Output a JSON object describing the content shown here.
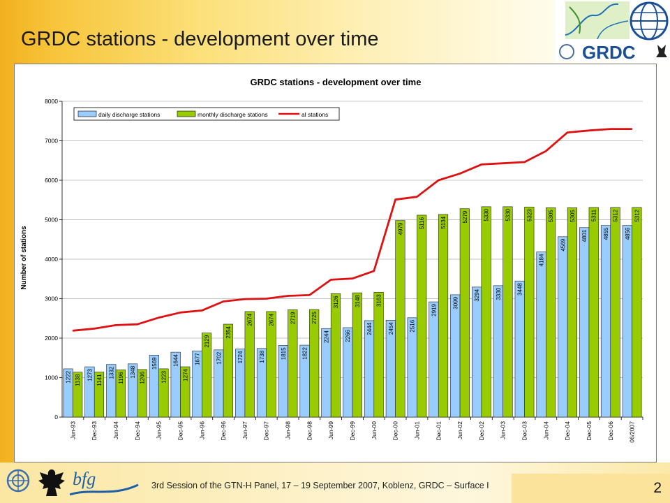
{
  "slide": {
    "title": "GRDC stations - development over time",
    "footer": "3rd Session of the GTN-H Panel, 17 – 19 September 2007, Koblenz, GRDC – Surface I",
    "page_number": "2",
    "logo_text": "GRDC",
    "bfg_text": "bfg"
  },
  "colors": {
    "daily": "#99ccff",
    "monthly": "#99cc00",
    "all": "#dd1111"
  },
  "chart_data": {
    "type": "bar",
    "title": "GRDC stations - development over time",
    "ylabel": "Number of stations",
    "xlabel": "",
    "ylim": [
      0,
      8000
    ],
    "yticks": [
      "0",
      "1000",
      "2000",
      "3000",
      "4000",
      "5000",
      "6000",
      "7000",
      "8000"
    ],
    "grid": true,
    "legend_position": "top-left",
    "categories": [
      "Jun-93",
      "Dec-93",
      "Jun-94",
      "Dec-94",
      "Jun-95",
      "Dec-95",
      "Jun-96",
      "Dec-96",
      "Jun-97",
      "Dec-97",
      "Jun-98",
      "Dec-98",
      "Jun-99",
      "Dec-99",
      "Jun-00",
      "Dec-00",
      "Jun-01",
      "Dec-01",
      "Jun-02",
      "Dec-02",
      "Jun-03",
      "Dec-03",
      "Jun-04",
      "Dec-04",
      "Dec-05",
      "Dec-06",
      "06/2007"
    ],
    "series": [
      {
        "name": "daily discharge stations",
        "kind": "bar",
        "values": [
          1222,
          1273,
          1332,
          1348,
          1569,
          1644,
          1677,
          1702,
          1724,
          1738,
          1815,
          1822,
          2244,
          2266,
          2444,
          2454,
          2516,
          2919,
          3099,
          3294,
          3330,
          3448,
          4184,
          4569,
          4801,
          4855,
          4856
        ]
      },
      {
        "name": "monthly discharge stations",
        "kind": "bar",
        "values": [
          1138,
          1141,
          1196,
          1206,
          1223,
          1274,
          2129,
          2354,
          2674,
          2674,
          2719,
          2725,
          3126,
          3148,
          3163,
          4979,
          5116,
          5134,
          5279,
          5330,
          5330,
          5323,
          5305,
          5305,
          5311,
          5312,
          5312
        ]
      },
      {
        "name": "al stations",
        "kind": "line",
        "values": [
          2190,
          2240,
          2330,
          2350,
          2520,
          2650,
          2700,
          2930,
          2990,
          3000,
          3070,
          3090,
          3480,
          3510,
          3700,
          5510,
          5580,
          6000,
          6170,
          6400,
          6430,
          6460,
          6740,
          7210,
          7260,
          7300,
          7300
        ]
      }
    ]
  }
}
